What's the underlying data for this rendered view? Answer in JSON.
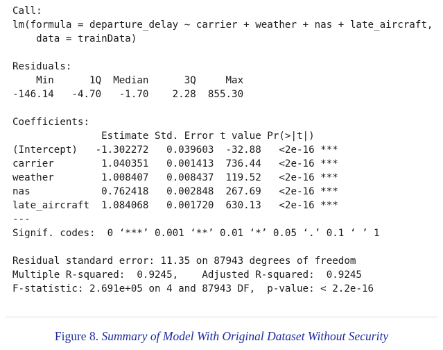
{
  "console": {
    "lines": [
      "Call:",
      "lm(formula = departure_delay ~ carrier + weather + nas + late_aircraft,",
      "    data = trainData)",
      "",
      "Residuals:",
      "    Min      1Q  Median      3Q     Max",
      "-146.14   -4.70   -1.70    2.28  855.30",
      "",
      "Coefficients:",
      "               Estimate Std. Error t value Pr(>|t|)",
      "(Intercept)   -1.302272   0.039603  -32.88   <2e-16 ***",
      "carrier        1.040351   0.001413  736.44   <2e-16 ***",
      "weather        1.008407   0.008437  119.52   <2e-16 ***",
      "nas            0.762418   0.002848  267.69   <2e-16 ***",
      "late_aircraft  1.084068   0.001720  630.13   <2e-16 ***",
      "---",
      "Signif. codes:  0 ‘***’ 0.001 ‘**’ 0.01 ‘*’ 0.05 ‘.’ 0.1 ‘ ’ 1",
      "",
      "Residual standard error: 11.35 on 87943 degrees of freedom",
      "Multiple R-squared:  0.9245,\tAdjusted R-squared:  0.9245",
      "F-statistic: 2.691e+05 on 4 and 87943 DF,  p-value: < 2.2e-16"
    ]
  },
  "caption": {
    "label": "Figure 8.",
    "title": "Summary of Model With Original Dataset Without Security"
  }
}
